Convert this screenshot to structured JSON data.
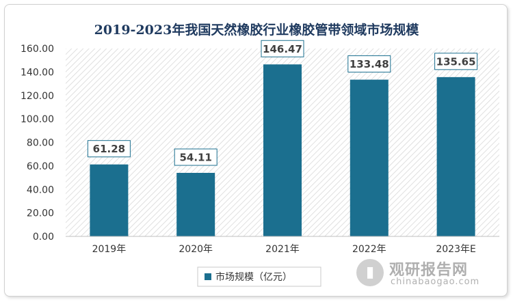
{
  "chart_data": {
    "type": "bar",
    "title": "2019-2023年我国天然橡胶行业橡胶管带领域市场规模",
    "categories": [
      "2019年",
      "2020年",
      "2021年",
      "2022年",
      "2023年E"
    ],
    "series": [
      {
        "name": "市场规模（亿元）",
        "values": [
          61.28,
          54.11,
          146.47,
          133.48,
          135.65
        ]
      }
    ],
    "data_labels": [
      "61.28",
      "54.11",
      "146.47",
      "133.48",
      "135.65"
    ],
    "yticks": [
      "0.00",
      "20.00",
      "40.00",
      "60.00",
      "80.00",
      "100.00",
      "120.00",
      "140.00",
      "160.00"
    ],
    "ylim": [
      0,
      160
    ],
    "xlabel": "",
    "ylabel": "",
    "grid": false,
    "legend_position": "bottom",
    "colors": {
      "bar": "#1b6f8f",
      "title": "#1f3a5f",
      "label_border": "#1b6f8f",
      "plot_pattern": "#d6d6d6"
    }
  },
  "watermark": {
    "icon": "bar-chart-logo-icon",
    "name": "观研报告网",
    "url": "chinabaogao.com"
  }
}
